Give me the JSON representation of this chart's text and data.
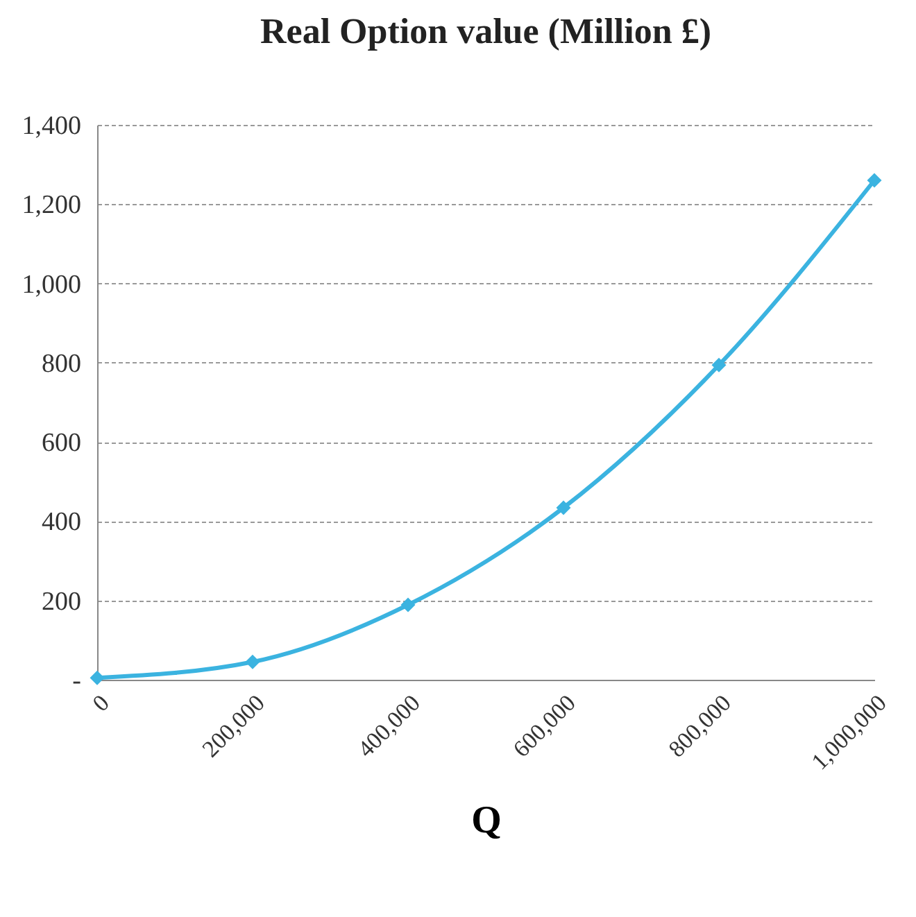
{
  "chart_data": {
    "type": "line",
    "title": "Real Option value (Million £)",
    "xlabel": "Q",
    "categories": [
      "0",
      "200,000",
      "400,000",
      "600,000",
      "800,000",
      "1,000,000"
    ],
    "series": [
      {
        "color": "#3bb3e0",
        "values": [
          5,
          45,
          189,
          434,
          794,
          1260
        ]
      }
    ],
    "ylim": [
      0,
      1400
    ],
    "yticks": [
      {
        "value": 0,
        "label": "-"
      },
      200,
      400,
      600,
      800,
      {
        "value": 1000,
        "label": "1,000"
      },
      {
        "value": 1200,
        "label": "1,200"
      },
      {
        "value": 1400,
        "label": "1,400"
      }
    ],
    "grid": "y",
    "marker": "diamond",
    "line_style": "solid"
  }
}
